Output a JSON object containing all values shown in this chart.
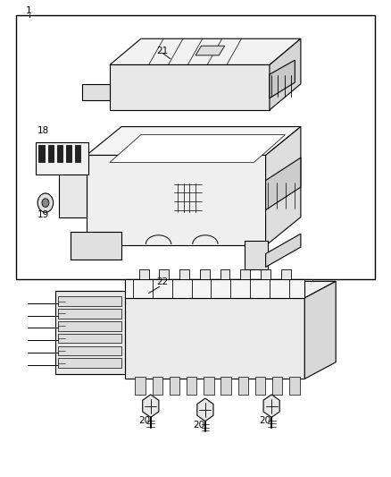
{
  "background_color": "#ffffff",
  "line_color": "#000000",
  "fig_width": 4.38,
  "fig_height": 5.33,
  "dpi": 100
}
